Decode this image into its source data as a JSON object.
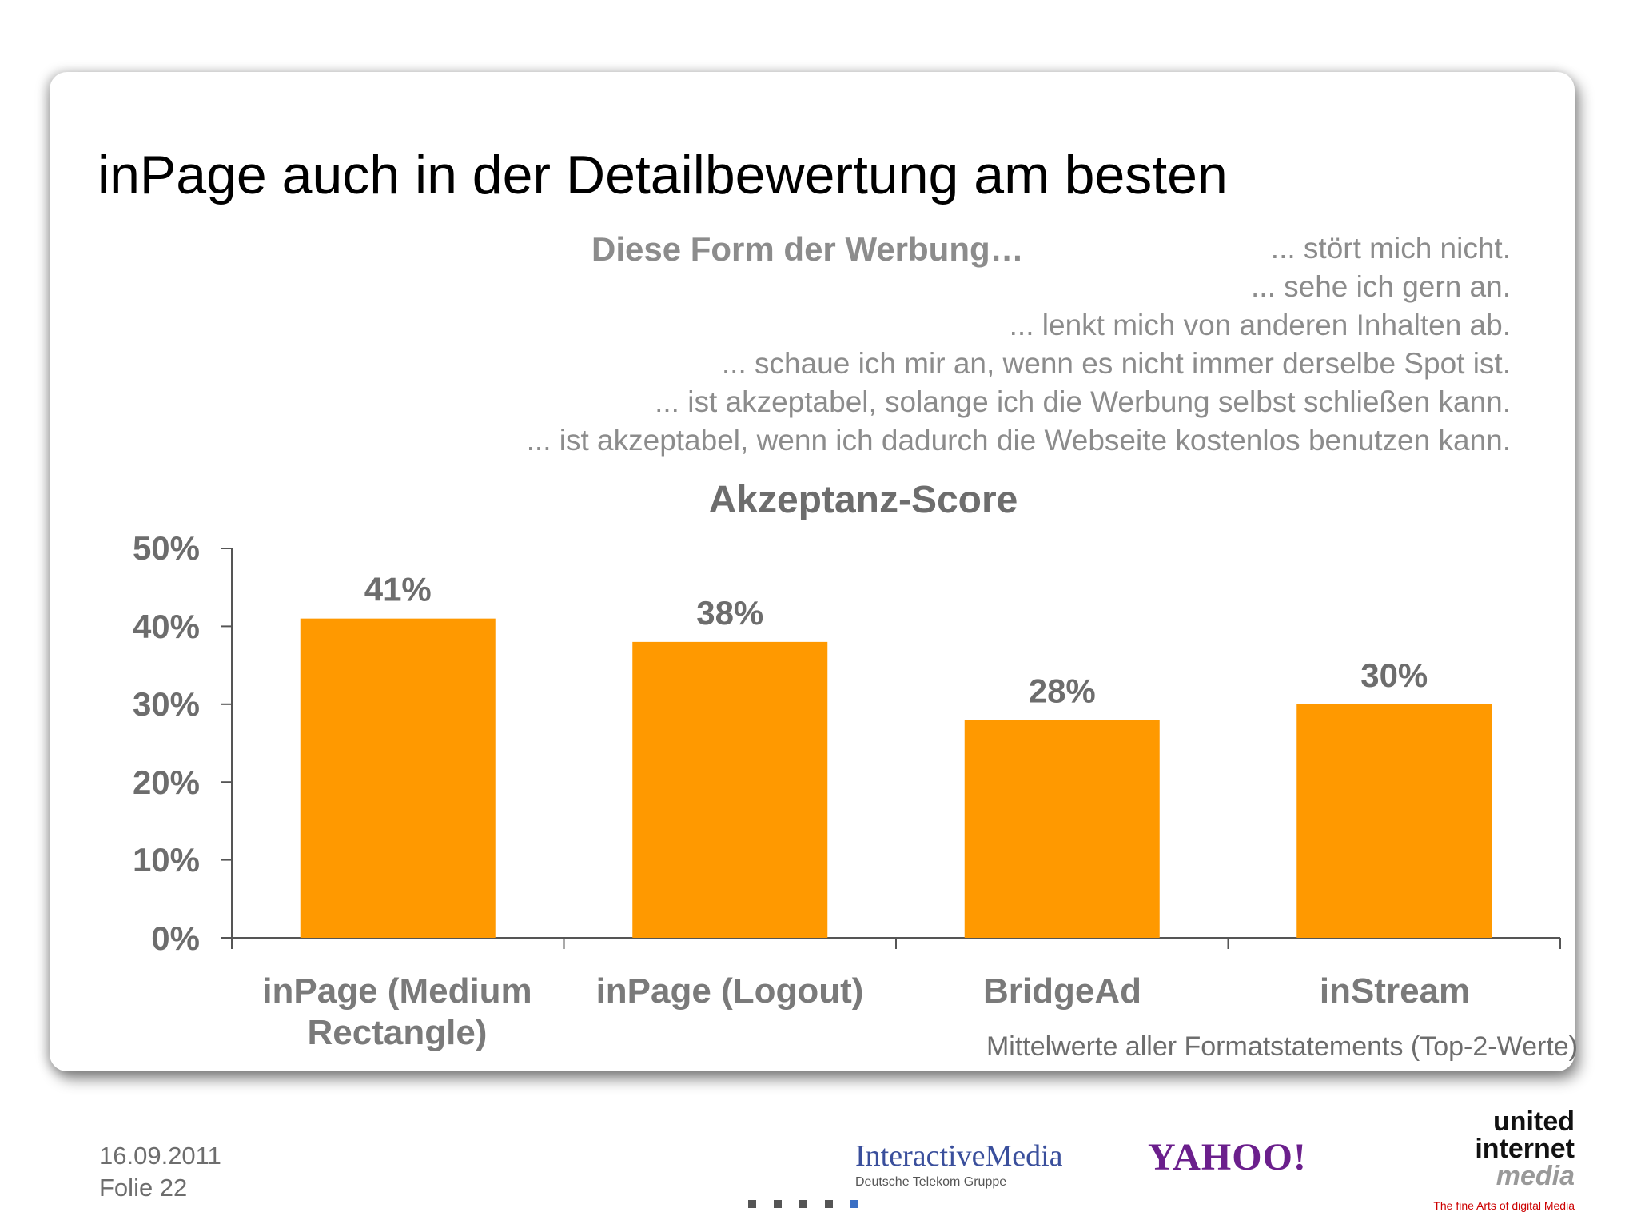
{
  "slide": {
    "title": "inPage auch in der Detailbewertung am besten",
    "statements_heading": "Diese Form der Werbung…",
    "statements": [
      "... stört mich nicht.",
      "... sehe ich gern an.",
      "... lenkt mich von anderen Inhalten ab.",
      "... schaue ich mir an, wenn es nicht immer derselbe Spot ist.",
      "... ist akzeptabel, solange ich die Werbung selbst schließen kann.",
      "... ist akzeptabel, wenn ich dadurch die Webseite kostenlos benutzen kann."
    ],
    "footnote": "Mittelwerte aller Formatstatements (Top-2-Werte)"
  },
  "footer": {
    "date": "16.09.2011",
    "slide_number": "Folie 22",
    "logos": {
      "interactive_media": "InteractiveMedia",
      "interactive_media_sub": "Deutsche Telekom Gruppe",
      "yahoo": "YAHOO!",
      "united_internet": [
        "united",
        "internet",
        "media"
      ],
      "united_internet_tagline": "The fine Arts of digital Media"
    }
  },
  "colors": {
    "bar": "#FF9900",
    "text_gray": "#6d6d6d"
  },
  "chart_data": {
    "type": "bar",
    "title": "Akzeptanz-Score",
    "categories": [
      "inPage (Medium Rectangle)",
      "inPage (Logout)",
      "BridgeAd",
      "inStream"
    ],
    "category_lines": [
      [
        "inPage (Medium",
        "Rectangle)"
      ],
      [
        "inPage (Logout)"
      ],
      [
        "BridgeAd"
      ],
      [
        "inStream"
      ]
    ],
    "values": [
      41,
      38,
      28,
      30
    ],
    "data_labels": [
      "41%",
      "38%",
      "28%",
      "30%"
    ],
    "ylim": [
      0,
      50
    ],
    "yticks": [
      "0%",
      "10%",
      "20%",
      "30%",
      "40%",
      "50%"
    ],
    "grid": false,
    "legend": "none"
  }
}
